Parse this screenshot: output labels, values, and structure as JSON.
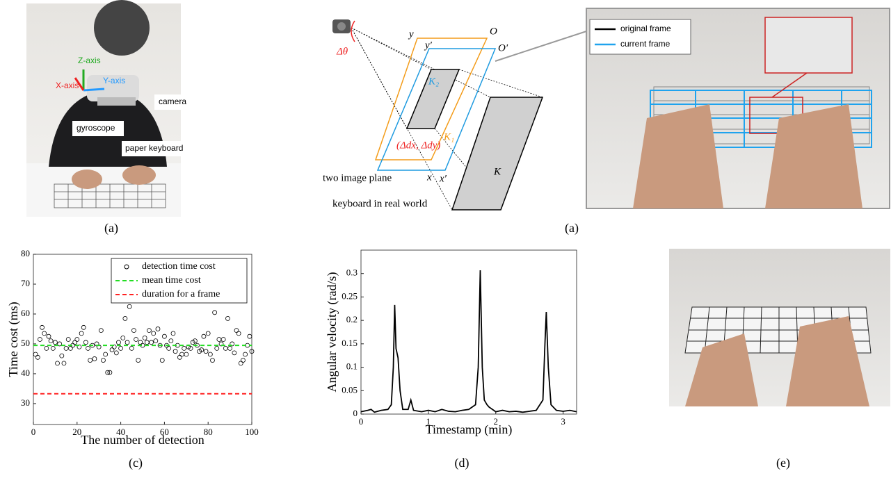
{
  "panel_photo": {
    "z_axis": "Z-axis",
    "x_axis": "X-axis",
    "y_axis": "Y-axis",
    "camera": "camera",
    "gyroscope": "gyroscope",
    "paper_keyboard": "paper keyboard",
    "caption": "(a)"
  },
  "panel_diagram": {
    "y": "y",
    "y_prime": "y′",
    "o": "O",
    "o_prime": "O′",
    "delta_theta": "Δθ",
    "k2": "K₂",
    "k1": "K₁",
    "offset": "(Δdx, Δdy)",
    "two_image_plane": "two image plane",
    "keyboard_real": "keyboard in real world",
    "x": "x",
    "x_prime": "x′",
    "k": "K",
    "legend": [
      "original frame",
      "current frame"
    ],
    "caption": "(a)"
  },
  "chart_data": [
    {
      "type": "scatter",
      "xlabel": "The number of detection",
      "ylabel": "Time cost (ms)",
      "caption": "(c)",
      "xlim": [
        0,
        100
      ],
      "xticks": [
        0,
        20,
        40,
        60,
        80,
        100
      ],
      "ylim": [
        23,
        80
      ],
      "yticks": [
        30,
        40,
        50,
        60,
        70,
        80
      ],
      "series": [
        {
          "name": "detection time cost",
          "color": "#000000",
          "x": [
            1,
            2,
            3,
            4,
            5,
            6,
            7,
            8,
            9,
            10,
            11,
            12,
            13,
            14,
            15,
            16,
            17,
            18,
            19,
            20,
            21,
            22,
            23,
            24,
            25,
            26,
            27,
            28,
            29,
            30,
            31,
            32,
            33,
            34,
            35,
            36,
            37,
            38,
            39,
            40,
            41,
            42,
            43,
            44,
            45,
            46,
            47,
            48,
            49,
            50,
            51,
            52,
            53,
            54,
            55,
            56,
            57,
            58,
            59,
            60,
            61,
            62,
            63,
            64,
            65,
            66,
            67,
            68,
            69,
            70,
            71,
            72,
            73,
            74,
            75,
            76,
            77,
            78,
            79,
            80,
            81,
            82,
            83,
            84,
            85,
            86,
            87,
            88,
            89,
            90,
            91,
            92,
            93,
            94,
            95,
            96,
            97,
            98,
            99,
            100
          ],
          "values": [
            46.5,
            45.5,
            51.5,
            55.5,
            53.5,
            48.5,
            52.5,
            51,
            48.5,
            50.5,
            43.5,
            50,
            46,
            43.5,
            48.5,
            51.5,
            48.5,
            49.5,
            50.5,
            51.5,
            49,
            53.5,
            55.5,
            50.5,
            48.5,
            44.5,
            49.5,
            45,
            50,
            49,
            54.5,
            44.5,
            46.5,
            40.4,
            40.4,
            48,
            49,
            47,
            50.5,
            48.5,
            52,
            58.5,
            50.5,
            62.5,
            48.5,
            54.5,
            51.5,
            44.5,
            50.5,
            49.5,
            52,
            50.5,
            54.5,
            50.5,
            53.5,
            51,
            55,
            49.5,
            44.5,
            52.5,
            49.5,
            48.5,
            51,
            53.5,
            47.5,
            49.5,
            45.5,
            46.5,
            48.5,
            46.5,
            49,
            48.5,
            50.5,
            51,
            49.5,
            47.5,
            48,
            52.5,
            47.5,
            53.5,
            46.5,
            44.5,
            60.5,
            48.5,
            51.5,
            50,
            51.5,
            48.5,
            58.5,
            48.5,
            50,
            47,
            54.5,
            53.5,
            43.5,
            44.5,
            46.5,
            49.5,
            52.5,
            47.5
          ]
        }
      ],
      "hlines": [
        {
          "name": "mean time cost",
          "color": "#22dd22",
          "value": 49.5
        },
        {
          "name": "duration for a frame",
          "color": "#ff2020",
          "value": 33.3
        }
      ]
    },
    {
      "type": "line",
      "xlabel": "Timestamp (min)",
      "ylabel": "Angular velocity (rad/s)",
      "caption": "(d)",
      "xlim": [
        0,
        3.2
      ],
      "xticks": [
        0,
        1,
        2,
        3
      ],
      "ylim": [
        0,
        0.35
      ],
      "yticks": [
        0,
        0.05,
        0.1,
        0.15,
        0.2,
        0.25,
        0.3
      ],
      "x": [
        0,
        0.1,
        0.15,
        0.2,
        0.3,
        0.4,
        0.45,
        0.48,
        0.5,
        0.52,
        0.55,
        0.58,
        0.62,
        0.7,
        0.74,
        0.78,
        0.9,
        1.0,
        1.1,
        1.2,
        1.3,
        1.4,
        1.5,
        1.6,
        1.7,
        1.74,
        1.77,
        1.8,
        1.83,
        1.87,
        1.9,
        2.0,
        2.1,
        2.2,
        2.3,
        2.4,
        2.5,
        2.6,
        2.7,
        2.73,
        2.75,
        2.78,
        2.82,
        2.9,
        3.0,
        3.1,
        3.2
      ],
      "series": [
        {
          "color": "#000000",
          "values": [
            0.005,
            0.008,
            0.01,
            0.004,
            0.008,
            0.01,
            0.02,
            0.1,
            0.233,
            0.14,
            0.12,
            0.05,
            0.01,
            0.01,
            0.03,
            0.008,
            0.005,
            0.008,
            0.005,
            0.01,
            0.006,
            0.005,
            0.008,
            0.01,
            0.02,
            0.1,
            0.307,
            0.1,
            0.03,
            0.02,
            0.015,
            0.005,
            0.008,
            0.005,
            0.006,
            0.004,
            0.006,
            0.008,
            0.03,
            0.15,
            0.218,
            0.1,
            0.02,
            0.008,
            0.006,
            0.008,
            0.005
          ]
        }
      ]
    }
  ],
  "panel_e": {
    "caption": "(e)"
  }
}
